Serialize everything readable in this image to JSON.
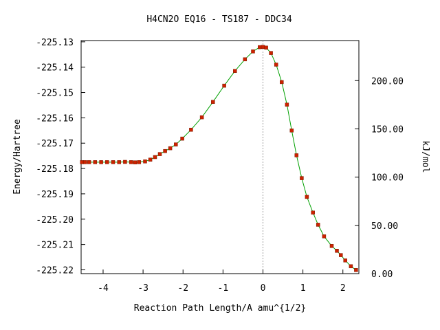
{
  "chart_data": {
    "type": "line",
    "title": "H4CN2O   EQ16 - TS187 - DDC34",
    "xlabel": "Reaction Path Length/A amu^{1/2}",
    "ylabel": "Energy/Hartree",
    "y2label": "kJ/mol",
    "xlim": [
      -4.55,
      2.4
    ],
    "ylim": [
      -225.2215,
      -225.1295
    ],
    "y2lim": [
      0,
      241.5
    ],
    "x_ticks": [
      "-4",
      "-3",
      "-2",
      "-1",
      "0",
      "1",
      "2"
    ],
    "y_ticks": [
      "-225.13",
      "-225.14",
      "-225.15",
      "-225.16",
      "-225.17",
      "-225.18",
      "-225.19",
      "-225.20",
      "-225.21",
      "-225.22"
    ],
    "y2_ticks": [
      "0.00",
      "50.00",
      "100.00",
      "150.00",
      "200.00"
    ],
    "ts_marker_x": 0,
    "grid": false,
    "line_color": "#00a000",
    "point_color": "#cc2200",
    "series": [
      {
        "values": [
          [
            -4.53,
            -225.1775
          ],
          [
            -4.45,
            -225.1775
          ],
          [
            -4.35,
            -225.1775
          ],
          [
            -4.2,
            -225.1775
          ],
          [
            -4.05,
            -225.1775
          ],
          [
            -3.9,
            -225.1775
          ],
          [
            -3.75,
            -225.1775
          ],
          [
            -3.6,
            -225.1775
          ],
          [
            -3.45,
            -225.1774
          ],
          [
            -3.3,
            -225.1775
          ],
          [
            -3.2,
            -225.1776
          ],
          [
            -3.1,
            -225.1775
          ],
          [
            -2.95,
            -225.1772
          ],
          [
            -2.82,
            -225.1765
          ],
          [
            -2.7,
            -225.1755
          ],
          [
            -2.58,
            -225.1743
          ],
          [
            -2.45,
            -225.1731
          ],
          [
            -2.32,
            -225.172
          ],
          [
            -2.18,
            -225.1705
          ],
          [
            -2.02,
            -225.1682
          ],
          [
            -1.8,
            -225.1647
          ],
          [
            -1.53,
            -225.1598
          ],
          [
            -1.25,
            -225.1537
          ],
          [
            -0.97,
            -225.1473
          ],
          [
            -0.7,
            -225.1415
          ],
          [
            -0.45,
            -225.1369
          ],
          [
            -0.25,
            -225.1338
          ],
          [
            -0.08,
            -225.1321
          ],
          [
            0.0,
            -225.132
          ],
          [
            0.08,
            -225.1323
          ],
          [
            0.2,
            -225.1344
          ],
          [
            0.33,
            -225.139
          ],
          [
            0.47,
            -225.1459
          ],
          [
            0.6,
            -225.1548
          ],
          [
            0.72,
            -225.165
          ],
          [
            0.84,
            -225.1748
          ],
          [
            0.97,
            -225.1838
          ],
          [
            1.1,
            -225.1912
          ],
          [
            1.25,
            -225.1974
          ],
          [
            1.38,
            -225.2022
          ],
          [
            1.53,
            -225.2068
          ],
          [
            1.72,
            -225.2106
          ],
          [
            1.85,
            -225.2125
          ],
          [
            1.95,
            -225.2142
          ],
          [
            2.06,
            -225.2163
          ],
          [
            2.2,
            -225.2186
          ],
          [
            2.33,
            -225.2201
          ]
        ]
      }
    ]
  }
}
